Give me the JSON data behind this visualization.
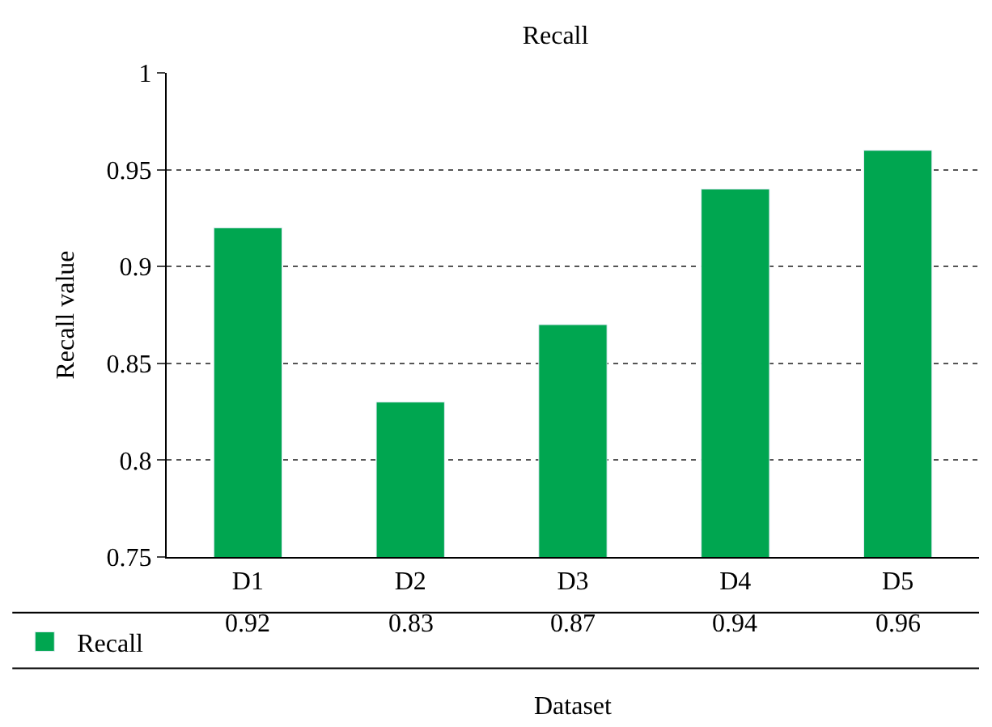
{
  "chart_data": {
    "type": "bar",
    "title": "Recall",
    "xlabel": "Dataset",
    "ylabel": "Recall value",
    "categories": [
      "D1",
      "D2",
      "D3",
      "D4",
      "D5"
    ],
    "series": [
      {
        "name": "Recall",
        "color": "#00a650",
        "values": [
          0.92,
          0.83,
          0.87,
          0.94,
          0.96
        ]
      }
    ],
    "ylim": [
      0.75,
      1
    ],
    "yticks": [
      0.75,
      0.8,
      0.85,
      0.9,
      0.95,
      1
    ],
    "grid": "y",
    "legend": "bottom left",
    "data_labels": true
  }
}
